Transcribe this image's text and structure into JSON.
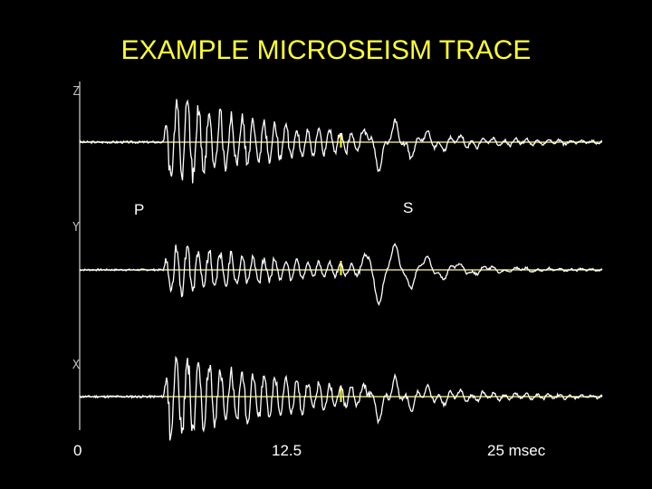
{
  "chart_data": {
    "type": "line",
    "title": "EXAMPLE MICROSEISM TRACE",
    "xlim": [
      0,
      25
    ],
    "x_ticks": [
      {
        "value": 0,
        "label": "0"
      },
      {
        "value": 12.5,
        "label": "12.5"
      },
      {
        "value": 25,
        "label": "25 msec"
      }
    ],
    "markers": [
      {
        "label": "P",
        "x": 4.0
      },
      {
        "label": "S",
        "x": 13.5
      }
    ],
    "series": [
      {
        "name": "Z",
        "p_onset": 4.0,
        "s_onset": 13.5,
        "p_amp": 1.0,
        "s_amp": 0.55,
        "seed": 3
      },
      {
        "name": "Y",
        "p_onset": 4.0,
        "s_onset": 13.5,
        "p_amp": 0.75,
        "s_amp": 1.0,
        "seed": 7
      },
      {
        "name": "X",
        "p_onset": 4.0,
        "s_onset": 13.5,
        "p_amp": 1.0,
        "s_amp": 0.45,
        "seed": 11
      }
    ],
    "grid": false,
    "legend": "none"
  },
  "colors": {
    "background": "#000000",
    "title": "#FFFF33",
    "trace": "#FFFFFF",
    "baseline": "#FFFF99",
    "axis": "#FFFFFF",
    "midmark": "#FFFF33"
  }
}
